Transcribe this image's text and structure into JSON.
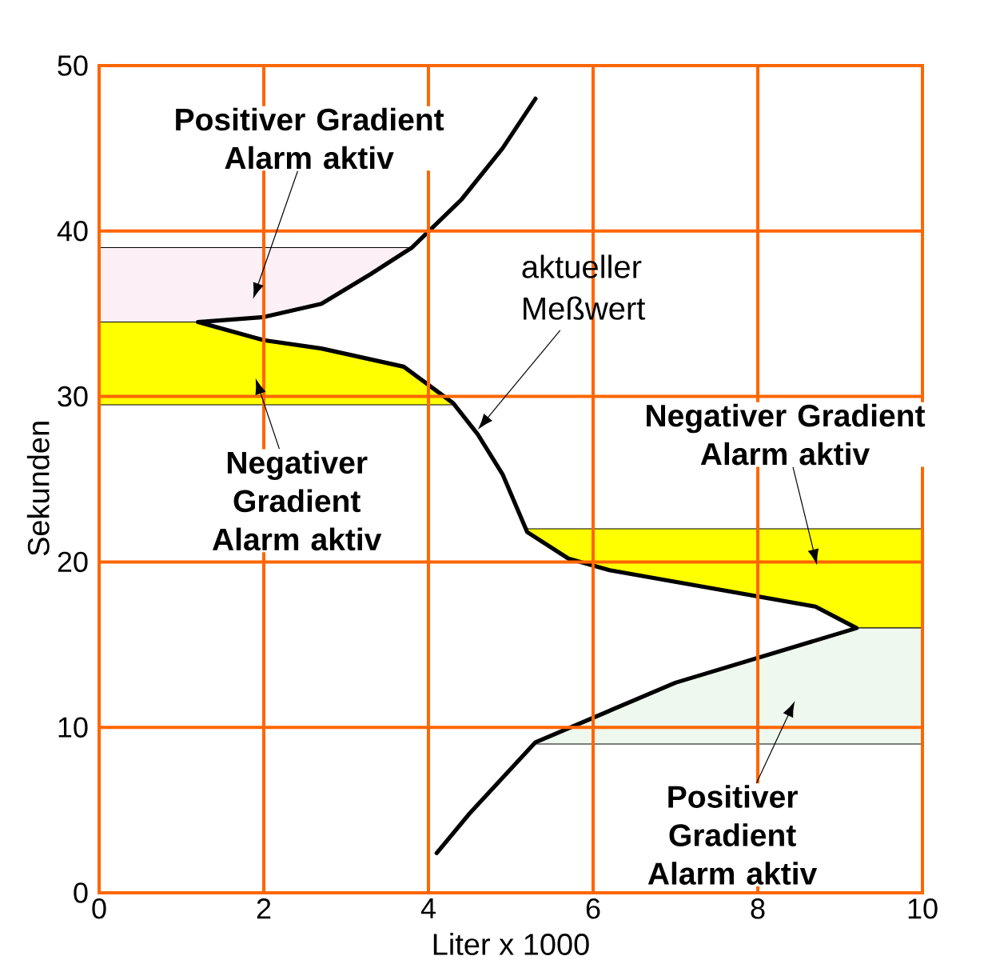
{
  "chart_data": {
    "type": "line",
    "xlabel": "Liter x 1000",
    "ylabel": "Sekunden",
    "xlim": [
      0,
      10
    ],
    "ylim": [
      0,
      50
    ],
    "xticks": [
      0,
      2,
      4,
      6,
      8,
      10
    ],
    "yticks": [
      0,
      10,
      20,
      30,
      40,
      50
    ],
    "grid": true,
    "series": [
      {
        "type": "area",
        "color": "#fcf0f6",
        "x": [
          0,
          1.2,
          2.0,
          2.7,
          3.3,
          3.8
        ],
        "values": [
          null,
          null,
          null,
          null,
          null,
          null
        ],
        "lower": [
          34.5,
          34.5,
          34.8,
          35.6,
          37.4,
          39.0
        ],
        "upper": [
          39,
          39,
          39,
          39,
          39,
          39
        ]
      },
      {
        "type": "area",
        "color": "#ffff00",
        "x": [
          0,
          1.2,
          2.0,
          2.7,
          3.7,
          4.3
        ],
        "values": [
          null,
          null,
          null,
          null,
          null,
          null
        ],
        "lower": [
          29.5,
          29.5,
          29.5,
          29.5,
          29.5,
          29.5
        ],
        "upper": [
          34.5,
          34.5,
          33.4,
          32.9,
          31.8,
          29.6
        ]
      },
      {
        "type": "area",
        "color": "#ffff00",
        "x": [
          5.2,
          5.7,
          6.2,
          8.7,
          9.2,
          10
        ],
        "values": [
          null,
          null,
          null,
          null,
          null,
          null
        ],
        "lower": [
          21.8,
          20.2,
          19.5,
          17.3,
          16,
          16
        ],
        "upper": [
          22,
          22,
          22,
          22,
          22,
          22
        ]
      },
      {
        "type": "area",
        "color": "#eff8ee",
        "x": [
          5.3,
          7.0,
          9.2,
          10
        ],
        "values": [
          null,
          null,
          null,
          null
        ],
        "lower": [
          9,
          9,
          9,
          9
        ],
        "upper": [
          9.1,
          12.7,
          16,
          16
        ]
      },
      {
        "name": "aktueller Meßwert",
        "color": "#000000",
        "x": [
          4.1,
          4.5,
          5.3,
          7.0,
          9.2,
          8.7,
          6.2,
          5.7,
          5.2,
          4.9,
          4.6,
          4.3,
          3.7,
          2.7,
          2.0,
          1.2,
          2.0,
          2.7,
          3.3,
          3.8,
          4.4,
          4.9,
          5.3
        ],
        "values": [
          2.4,
          4.8,
          9.1,
          12.7,
          16,
          17.3,
          19.5,
          20.2,
          21.8,
          25.3,
          27.7,
          29.6,
          31.8,
          32.9,
          33.4,
          34.5,
          34.8,
          35.6,
          37.4,
          39.0,
          41.9,
          45.0,
          48.0
        ]
      }
    ],
    "annotations": [
      "Positiver Gradient Alarm aktiv",
      "Negativer Gradient Alarm aktiv",
      "Negativer Gradient Alarm aktiv",
      "Positiver Gradient Alarm aktiv"
    ]
  }
}
